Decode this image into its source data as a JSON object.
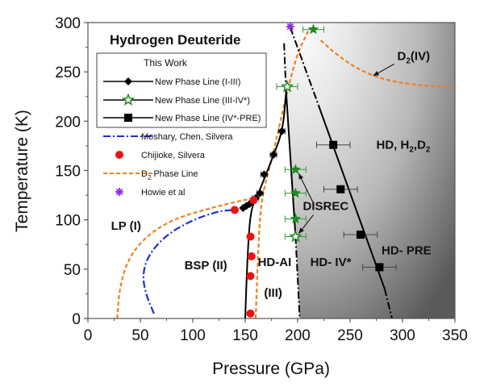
{
  "chart_data": {
    "type": "scatter",
    "title": "Hydrogen Deuteride",
    "xlabel": "Pressure (GPa)",
    "ylabel": "Temperature (K)",
    "xlim": [
      0,
      350
    ],
    "ylim": [
      0,
      300
    ],
    "xticks": [
      0,
      50,
      100,
      150,
      200,
      250,
      300,
      350
    ],
    "yticks": [
      0,
      50,
      100,
      150,
      200,
      250,
      300
    ],
    "grid": false,
    "legend_placement": "top-left",
    "legend": {
      "header": "This Work",
      "entries": [
        {
          "label": "New Phase Line (I-III)",
          "key": "i_iii"
        },
        {
          "label": "New Phase Line (III-IV*)",
          "key": "iii_iv"
        },
        {
          "label": "New Phase Line (IV*-PRE)",
          "key": "iv_pre"
        },
        {
          "label": "Moshary, Chen, Silvera",
          "key": "moshary"
        },
        {
          "label": "Chijioke, Silvera",
          "key": "chijioke"
        },
        {
          "label": "D_2 Phase Line",
          "key": "d2",
          "main": "D",
          "sub": "2",
          "rest": " Phase Line"
        },
        {
          "label": "Howie et al",
          "key": "howie"
        }
      ]
    },
    "series": [
      {
        "name": "New Phase Line (I-III)",
        "key": "i_iii",
        "color": "#000000",
        "marker": "diamond",
        "points": [
          [
            148,
            112
          ],
          [
            151,
            114
          ],
          [
            154,
            116
          ],
          [
            160,
            122
          ],
          [
            164,
            127
          ],
          [
            168,
            146
          ],
          [
            177,
            166
          ],
          [
            185,
            190
          ]
        ],
        "line": [
          [
            150,
            0
          ],
          [
            152,
            60
          ],
          [
            155,
            110
          ],
          [
            162,
            125
          ],
          [
            178,
            168
          ],
          [
            186,
            192
          ],
          [
            189,
            230
          ]
        ],
        "dashdot_ext": [
          [
            189,
            230
          ],
          [
            187,
            280
          ]
        ]
      },
      {
        "name": "New Phase Line (III-IV*)",
        "key": "iii_iv",
        "color": "#1f8a1f",
        "marker": "star",
        "points": [
          [
            215,
            293,
            "filled"
          ],
          [
            190,
            235,
            "hollow"
          ],
          [
            198,
            151,
            "filled"
          ],
          [
            198,
            127,
            "filled"
          ],
          [
            198,
            101,
            "filled"
          ],
          [
            198,
            83,
            "hollow"
          ]
        ],
        "line": [
          [
            189,
            230
          ],
          [
            198,
            83
          ]
        ],
        "dashdot_ext": [
          [
            198,
            83
          ],
          [
            202,
            0
          ]
        ]
      },
      {
        "name": "New Phase Line (IV*-PRE)",
        "key": "iv_pre",
        "color": "#000000",
        "marker": "square",
        "points": [
          [
            234,
            176
          ],
          [
            241,
            131
          ],
          [
            260,
            85
          ],
          [
            278,
            52
          ]
        ],
        "line": [
          [
            222,
            210
          ],
          [
            283,
            30
          ]
        ],
        "dashdot_top": [
          [
            193,
            295
          ],
          [
            222,
            210
          ]
        ],
        "dashdot_bottom": [
          [
            283,
            30
          ],
          [
            290,
            0
          ]
        ]
      },
      {
        "name": "Moshary, Chen, Silvera",
        "key": "moshary",
        "color": "#1a2fd0",
        "style": "dashdot",
        "points": [
          [
            63,
            5
          ],
          [
            55,
            25
          ],
          [
            52,
            45
          ],
          [
            58,
            65
          ],
          [
            75,
            85
          ],
          [
            100,
            100
          ],
          [
            125,
            109
          ],
          [
            140,
            110
          ]
        ]
      },
      {
        "name": "Chijioke, Silvera",
        "key": "chijioke",
        "color": "#ee1111",
        "marker": "circle",
        "points": [
          [
            140,
            110
          ],
          [
            158,
            120
          ],
          [
            155,
            83
          ],
          [
            156,
            63
          ],
          [
            155,
            43
          ],
          [
            155,
            5
          ]
        ]
      },
      {
        "name": "D_2 Phase Line",
        "key": "d2",
        "color": "#f07f1f",
        "style": "dash",
        "segments": [
          [
            [
              28,
              0
            ],
            [
              30,
              30
            ],
            [
              38,
              60
            ],
            [
              55,
              83
            ],
            [
              80,
              100
            ],
            [
              110,
              110
            ],
            [
              140,
              118
            ],
            [
              158,
              122
            ]
          ],
          [
            [
              160,
              0
            ],
            [
              162,
              60
            ],
            [
              165,
              120
            ],
            [
              175,
              160
            ],
            [
              190,
              230
            ],
            [
              200,
              270
            ],
            [
              212,
              295
            ]
          ],
          [
            [
              222,
              282
            ],
            [
              240,
              265
            ],
            [
              262,
              250
            ],
            [
              290,
              240
            ],
            [
              320,
              236
            ],
            [
              350,
              234
            ]
          ]
        ]
      },
      {
        "name": "Howie et al",
        "key": "howie",
        "color": "#8a2be2",
        "marker": "asterisk",
        "points": [
          [
            193,
            296
          ]
        ]
      }
    ],
    "error_bars": {
      "iii_iv": 10,
      "iv_pre": 16
    },
    "region_labels": [
      {
        "text": "LP (I)",
        "x": 22,
        "y": 90
      },
      {
        "text": "BSP (II)",
        "x": 92,
        "y": 50
      },
      {
        "text": "HD-AI",
        "x": 162,
        "y": 53
      },
      {
        "text": "(III)",
        "x": 168,
        "y": 22
      },
      {
        "text": "HD- IV*",
        "x": 212,
        "y": 53
      },
      {
        "text": "HD- PRE",
        "x": 280,
        "y": 65
      },
      {
        "text": "DISREC",
        "x": 205,
        "y": 110
      }
    ],
    "annotations": {
      "hd_h2d2": {
        "main1": "HD, H",
        "sub1": "2",
        "main2": ",D",
        "sub2": "2",
        "x": 275,
        "y": 172
      },
      "d2iv": {
        "main": "D",
        "sub": "2",
        "rest": "(IV)",
        "x": 295,
        "y": 262
      },
      "disrec_arrows": [
        [
          [
            215,
            117
          ],
          [
            201,
            147
          ]
        ],
        [
          [
            215,
            105
          ],
          [
            201,
            86
          ]
        ]
      ],
      "d2iv_arrow": [
        [
          292,
          258
        ],
        [
          272,
          246
        ]
      ]
    },
    "shaded_region": {
      "description_colors": [
        "#ffffff",
        "#5a5a5a"
      ]
    }
  }
}
